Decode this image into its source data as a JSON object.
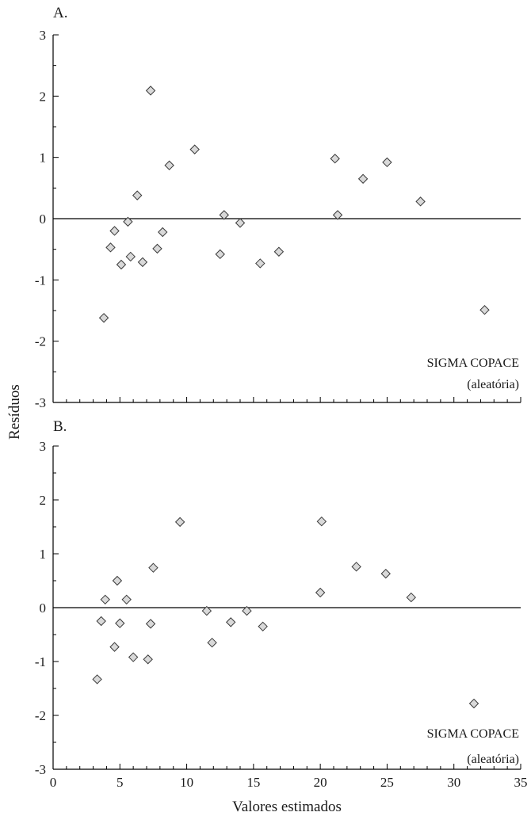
{
  "chart_data": [
    {
      "type": "scatter",
      "panel_label": "A.",
      "xlim": [
        0,
        35
      ],
      "ylim": [
        -3,
        3
      ],
      "xticks": [
        "0",
        "5",
        "10",
        "15",
        "20",
        "25",
        "30",
        "35"
      ],
      "yticks": [
        "3",
        "2",
        "1",
        "0",
        "-1",
        "-2",
        "-3"
      ],
      "xlabel": "",
      "ylabel": "Resíduos",
      "reference_line_y": 0,
      "annotation": [
        "SIGMA COPACE",
        "(aleatória)"
      ],
      "marker": "diamond",
      "marker_color": "#d9d9d9",
      "points": [
        {
          "x": 3.8,
          "y": -1.62
        },
        {
          "x": 4.3,
          "y": -0.47
        },
        {
          "x": 4.6,
          "y": -0.2
        },
        {
          "x": 5.1,
          "y": -0.75
        },
        {
          "x": 5.6,
          "y": -0.05
        },
        {
          "x": 5.8,
          "y": -0.62
        },
        {
          "x": 6.3,
          "y": 0.38
        },
        {
          "x": 6.7,
          "y": -0.71
        },
        {
          "x": 7.3,
          "y": 2.09
        },
        {
          "x": 7.8,
          "y": -0.49
        },
        {
          "x": 8.2,
          "y": -0.22
        },
        {
          "x": 8.7,
          "y": 0.87
        },
        {
          "x": 10.6,
          "y": 1.13
        },
        {
          "x": 12.5,
          "y": -0.58
        },
        {
          "x": 12.8,
          "y": 0.06
        },
        {
          "x": 14.0,
          "y": -0.07
        },
        {
          "x": 15.5,
          "y": -0.73
        },
        {
          "x": 16.9,
          "y": -0.54
        },
        {
          "x": 21.1,
          "y": 0.98
        },
        {
          "x": 21.3,
          "y": 0.06
        },
        {
          "x": 23.2,
          "y": 0.65
        },
        {
          "x": 25.0,
          "y": 0.92
        },
        {
          "x": 27.5,
          "y": 0.28
        },
        {
          "x": 32.3,
          "y": -1.49
        }
      ]
    },
    {
      "type": "scatter",
      "panel_label": "B.",
      "xlim": [
        0,
        35
      ],
      "ylim": [
        -3,
        3
      ],
      "xticks": [
        "0",
        "5",
        "10",
        "15",
        "20",
        "25",
        "30",
        "35"
      ],
      "yticks": [
        "3",
        "2",
        "1",
        "0",
        "-1",
        "-2",
        "-3"
      ],
      "xlabel": "Valores estimados",
      "ylabel": "",
      "reference_line_y": 0,
      "annotation": [
        "SIGMA COPACE",
        "(aleatória)"
      ],
      "marker": "diamond",
      "marker_color": "#d9d9d9",
      "points": [
        {
          "x": 3.3,
          "y": -1.33
        },
        {
          "x": 3.6,
          "y": -0.25
        },
        {
          "x": 3.9,
          "y": 0.15
        },
        {
          "x": 4.6,
          "y": -0.73
        },
        {
          "x": 4.8,
          "y": 0.5
        },
        {
          "x": 5.0,
          "y": -0.29
        },
        {
          "x": 5.5,
          "y": 0.15
        },
        {
          "x": 6.0,
          "y": -0.92
        },
        {
          "x": 7.1,
          "y": -0.96
        },
        {
          "x": 7.3,
          "y": -0.3
        },
        {
          "x": 7.5,
          "y": 0.74
        },
        {
          "x": 9.5,
          "y": 1.59
        },
        {
          "x": 11.5,
          "y": -0.06
        },
        {
          "x": 11.9,
          "y": -0.65
        },
        {
          "x": 13.3,
          "y": -0.27
        },
        {
          "x": 14.5,
          "y": -0.06
        },
        {
          "x": 15.7,
          "y": -0.35
        },
        {
          "x": 20.0,
          "y": 0.28
        },
        {
          "x": 20.1,
          "y": 1.6
        },
        {
          "x": 22.7,
          "y": 0.76
        },
        {
          "x": 24.9,
          "y": 0.63
        },
        {
          "x": 26.8,
          "y": 0.19
        },
        {
          "x": 31.5,
          "y": -1.78
        }
      ]
    }
  ]
}
